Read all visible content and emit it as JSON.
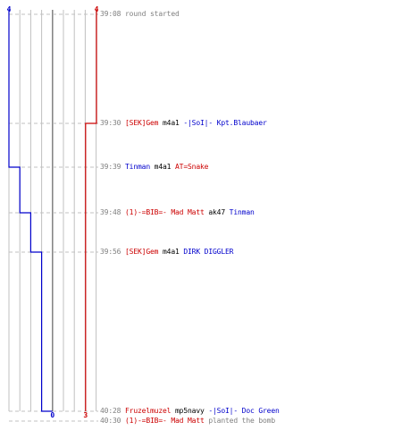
{
  "colors": {
    "team_a": "#0000cc",
    "team_b": "#cc0000",
    "time": "#808080",
    "neutral": "#000000",
    "note": "#808080",
    "grid": "#c0c0c0",
    "dash": "#c0c0c0",
    "center": "#808080"
  },
  "timeline": {
    "team_a": {
      "start_count": "4",
      "end_count": "0",
      "steps": [
        0,
        0,
        1,
        2,
        3,
        4
      ]
    },
    "team_b": {
      "start_count": "4",
      "end_count": "3",
      "steps": [
        0,
        1,
        1,
        1,
        1,
        1
      ]
    },
    "events": [
      {
        "time": "39:08",
        "parts": [
          {
            "text": "round started",
            "color": "note"
          }
        ]
      },
      {
        "time": "39:30",
        "parts": [
          {
            "text": "[SEK]Gem",
            "color": "team_b"
          },
          {
            "text": " m4a1 ",
            "color": "neutral"
          },
          {
            "text": "-|SoI|- Kpt.Blaubaer",
            "color": "team_a"
          }
        ]
      },
      {
        "time": "39:39",
        "parts": [
          {
            "text": "Tinman",
            "color": "team_a"
          },
          {
            "text": " m4a1 ",
            "color": "neutral"
          },
          {
            "text": "AT=Snake",
            "color": "team_b"
          }
        ]
      },
      {
        "time": "39:48",
        "parts": [
          {
            "text": "(1)-=BIB=- Mad Matt",
            "color": "team_b"
          },
          {
            "text": " ak47 ",
            "color": "neutral"
          },
          {
            "text": "Tinman",
            "color": "team_a"
          }
        ]
      },
      {
        "time": "39:56",
        "parts": [
          {
            "text": "[SEK]Gem",
            "color": "team_b"
          },
          {
            "text": " m4a1 ",
            "color": "neutral"
          },
          {
            "text": "DIRK DIGGLER",
            "color": "team_a"
          }
        ]
      },
      {
        "time": "40:28",
        "parts": [
          {
            "text": "Fruzelmuzel",
            "color": "team_b"
          },
          {
            "text": " mp5navy ",
            "color": "neutral"
          },
          {
            "text": "-|SoI|- Doc Green",
            "color": "team_a"
          }
        ]
      },
      {
        "time": "40:30",
        "parts": [
          {
            "text": "(1)-=BIB=- Mad Matt",
            "color": "team_b"
          },
          {
            "text": " planted the bomb",
            "color": "note"
          }
        ]
      }
    ]
  }
}
